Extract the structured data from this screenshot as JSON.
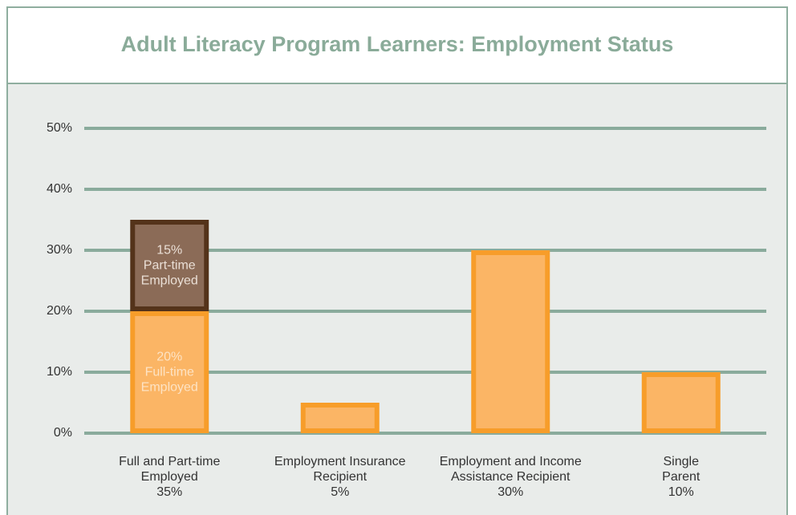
{
  "chart_data": {
    "type": "bar",
    "title": "Adult Literacy Program Learners: Employment Status",
    "categories": [
      "Full and Part-time\nEmployed",
      "Employment Insurance\nRecipient",
      "Employment and Income\nAssistance Recipient",
      "Single\nParent"
    ],
    "total_labels": [
      "35%",
      "5%",
      "30%",
      "10%"
    ],
    "stacked": true,
    "series": [
      {
        "name": "Full-time\nEmployed",
        "color": "#fbb565",
        "edge": "#f79d2a",
        "text_color": "#fde3c4",
        "values": [
          20,
          5,
          30,
          10
        ],
        "value_labels": [
          "20%",
          null,
          null,
          null
        ]
      },
      {
        "name": "Part-time\nEmployed",
        "color": "#8b6b57",
        "edge": "#54331a",
        "text_color": "#eadfd6",
        "values": [
          15,
          null,
          null,
          null
        ],
        "value_labels": [
          "15%",
          null,
          null,
          null
        ]
      }
    ],
    "ylim": [
      0,
      50
    ],
    "yticks": [
      {
        "value": 0,
        "label": "0%"
      },
      {
        "value": 10,
        "label": "10%"
      },
      {
        "value": 20,
        "label": "20%"
      },
      {
        "value": 30,
        "label": "30%"
      },
      {
        "value": 40,
        "label": "40%"
      },
      {
        "value": 50,
        "label": "50%"
      }
    ],
    "grid": true,
    "grid_color": "#8aab9c"
  }
}
